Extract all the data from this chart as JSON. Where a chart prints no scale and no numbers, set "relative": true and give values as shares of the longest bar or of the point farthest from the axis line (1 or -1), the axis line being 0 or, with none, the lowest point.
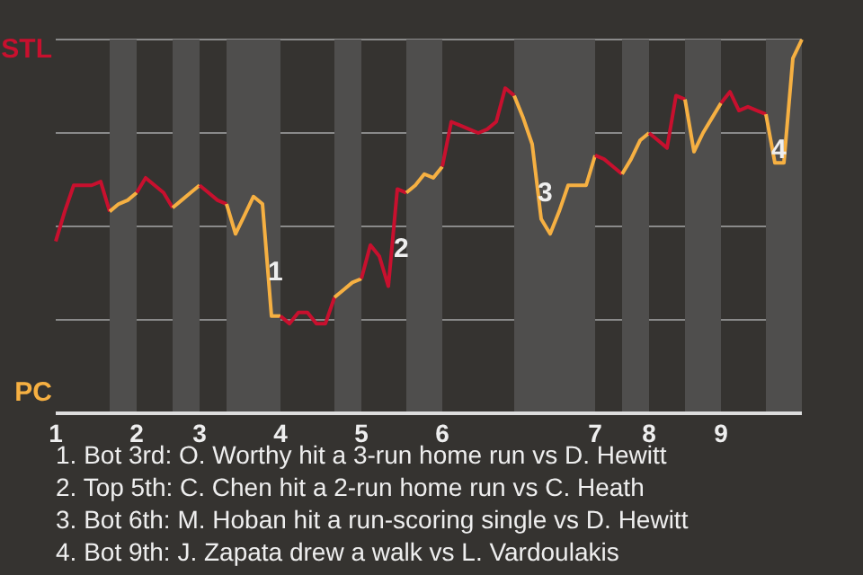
{
  "chart_data": {
    "type": "line",
    "relative": true,
    "categories": [
      "1",
      null,
      null,
      null,
      null,
      null,
      null,
      null,
      null,
      "2",
      null,
      null,
      null,
      null,
      null,
      null,
      "3",
      null,
      null,
      null,
      null,
      null,
      null,
      null,
      null,
      "4",
      null,
      null,
      null,
      null,
      null,
      null,
      null,
      null,
      "5",
      null,
      null,
      null,
      null,
      null,
      null,
      null,
      null,
      "6",
      null,
      null,
      null,
      null,
      null,
      null,
      null,
      null,
      null,
      null,
      null,
      null,
      null,
      null,
      null,
      null,
      "7",
      null,
      null,
      null,
      null,
      null,
      "8",
      null,
      null,
      null,
      null,
      null,
      null,
      null,
      "9",
      null,
      null,
      null,
      null,
      null,
      null,
      null,
      null,
      null
    ],
    "grid": "y",
    "series": [
      {
        "color": "#c8102e",
        "values": [
          0.46,
          0.54,
          0.61,
          0.61,
          0.61,
          0.62,
          0.54,
          null,
          null,
          null,
          null,
          null,
          null,
          null,
          null,
          null,
          null,
          null,
          null,
          null,
          null,
          null,
          null,
          null,
          null,
          null,
          null,
          null,
          null,
          null,
          null,
          null,
          null,
          null,
          null,
          null,
          null,
          null,
          null,
          null,
          null,
          null,
          null,
          null,
          null,
          null,
          null,
          null,
          null,
          null,
          null,
          null,
          null,
          null,
          null,
          null,
          null,
          null,
          null,
          null,
          null,
          null,
          null,
          null,
          null,
          null,
          null,
          null,
          null,
          null,
          null,
          null,
          null,
          null,
          null,
          null,
          null,
          null,
          null,
          null,
          null,
          null,
          null,
          null
        ]
      },
      {
        "color": "#f6b042",
        "values": [
          null,
          null,
          null,
          null,
          null,
          null,
          0.54,
          0.56,
          0.57,
          0.59,
          null,
          null,
          null,
          null,
          null,
          null,
          null,
          null,
          null,
          null,
          null,
          null,
          null,
          null,
          null,
          null,
          null,
          null,
          null,
          null,
          null,
          null,
          null,
          null,
          null,
          null,
          null,
          null,
          null,
          null,
          null,
          null,
          null,
          null,
          null,
          null,
          null,
          null,
          null,
          null,
          null,
          null,
          null,
          null,
          null,
          null,
          null,
          null,
          null,
          null,
          null,
          null,
          null,
          null,
          null,
          null,
          null,
          null,
          null,
          null,
          null,
          null,
          null,
          null,
          null,
          null,
          null,
          null,
          null,
          null,
          null,
          null,
          null,
          null
        ]
      },
      {
        "color": "#c8102e",
        "values": [
          null,
          null,
          null,
          null,
          null,
          null,
          null,
          null,
          null,
          0.59,
          0.63,
          0.61,
          0.59,
          0.55,
          null,
          null,
          null,
          null,
          null,
          null,
          null,
          null,
          null,
          null,
          null,
          null,
          null,
          null,
          null,
          null,
          null,
          null,
          null,
          null,
          null,
          null,
          null,
          null,
          null,
          null,
          null,
          null,
          null,
          null,
          null,
          null,
          null,
          null,
          null,
          null,
          null,
          null,
          null,
          null,
          null,
          null,
          null,
          null,
          null,
          null,
          null,
          null,
          null,
          null,
          null,
          null,
          null,
          null,
          null,
          null,
          null,
          null,
          null,
          null,
          null,
          null,
          null,
          null,
          null,
          null,
          null,
          null,
          null,
          null
        ]
      },
      {
        "color": "#f6b042",
        "values": [
          null,
          null,
          null,
          null,
          null,
          null,
          null,
          null,
          null,
          null,
          null,
          null,
          null,
          0.55,
          0.57,
          0.59,
          0.61,
          null,
          null,
          null,
          null,
          null,
          null,
          null,
          null,
          null,
          null,
          null,
          null,
          null,
          null,
          null,
          null,
          null,
          null,
          null,
          null,
          null,
          null,
          null,
          null,
          null,
          null,
          null,
          null,
          null,
          null,
          null,
          null,
          null,
          null,
          null,
          null,
          null,
          null,
          null,
          null,
          null,
          null,
          null,
          null,
          null,
          null,
          null,
          null,
          null,
          null,
          null,
          null,
          null,
          null,
          null,
          null,
          null,
          null,
          null,
          null,
          null,
          null,
          null,
          null,
          null,
          null,
          null
        ]
      },
      {
        "color": "#c8102e",
        "values": [
          null,
          null,
          null,
          null,
          null,
          null,
          null,
          null,
          null,
          null,
          null,
          null,
          null,
          null,
          null,
          null,
          0.61,
          0.59,
          0.57,
          0.56,
          null,
          null,
          null,
          null,
          null,
          null,
          null,
          null,
          null,
          null,
          null,
          null,
          null,
          null,
          null,
          null,
          null,
          null,
          null,
          null,
          null,
          null,
          null,
          null,
          null,
          null,
          null,
          null,
          null,
          null,
          null,
          null,
          null,
          null,
          null,
          null,
          null,
          null,
          null,
          null,
          null,
          null,
          null,
          null,
          null,
          null,
          null,
          null,
          null,
          null,
          null,
          null,
          null,
          null,
          null,
          null,
          null,
          null,
          null,
          null,
          null,
          null,
          null,
          null
        ]
      },
      {
        "color": "#f6b042",
        "values": [
          null,
          null,
          null,
          null,
          null,
          null,
          null,
          null,
          null,
          null,
          null,
          null,
          null,
          null,
          null,
          null,
          null,
          null,
          null,
          0.56,
          0.48,
          0.53,
          0.58,
          0.56,
          0.26,
          0.26,
          null,
          null,
          null,
          null,
          null,
          null,
          null,
          null,
          null,
          null,
          null,
          null,
          null,
          null,
          null,
          null,
          null,
          null,
          null,
          null,
          null,
          null,
          null,
          null,
          null,
          null,
          null,
          null,
          null,
          null,
          null,
          null,
          null,
          null,
          null,
          null,
          null,
          null,
          null,
          null,
          null,
          null,
          null,
          null,
          null,
          null,
          null,
          null,
          null,
          null,
          null,
          null,
          null,
          null,
          null,
          null,
          null,
          null
        ]
      },
      {
        "color": "#c8102e",
        "values": [
          null,
          null,
          null,
          null,
          null,
          null,
          null,
          null,
          null,
          null,
          null,
          null,
          null,
          null,
          null,
          null,
          null,
          null,
          null,
          null,
          null,
          null,
          null,
          null,
          null,
          0.26,
          0.24,
          0.27,
          0.27,
          0.24,
          0.24,
          0.31,
          null,
          null,
          null,
          null,
          null,
          null,
          null,
          null,
          null,
          null,
          null,
          null,
          null,
          null,
          null,
          null,
          null,
          null,
          null,
          null,
          null,
          null,
          null,
          null,
          null,
          null,
          null,
          null,
          null,
          null,
          null,
          null,
          null,
          null,
          null,
          null,
          null,
          null,
          null,
          null,
          null,
          null,
          null,
          null,
          null,
          null,
          null,
          null,
          null,
          null,
          null,
          null
        ]
      },
      {
        "color": "#f6b042",
        "values": [
          null,
          null,
          null,
          null,
          null,
          null,
          null,
          null,
          null,
          null,
          null,
          null,
          null,
          null,
          null,
          null,
          null,
          null,
          null,
          null,
          null,
          null,
          null,
          null,
          null,
          null,
          null,
          null,
          null,
          null,
          null,
          0.31,
          0.33,
          0.35,
          0.36,
          null,
          null,
          null,
          null,
          null,
          null,
          null,
          null,
          null,
          null,
          null,
          null,
          null,
          null,
          null,
          null,
          null,
          null,
          null,
          null,
          null,
          null,
          null,
          null,
          null,
          null,
          null,
          null,
          null,
          null,
          null,
          null,
          null,
          null,
          null,
          null,
          null,
          null,
          null,
          null,
          null,
          null,
          null,
          null,
          null,
          null,
          null,
          null,
          null
        ]
      },
      {
        "color": "#c8102e",
        "values": [
          null,
          null,
          null,
          null,
          null,
          null,
          null,
          null,
          null,
          null,
          null,
          null,
          null,
          null,
          null,
          null,
          null,
          null,
          null,
          null,
          null,
          null,
          null,
          null,
          null,
          null,
          null,
          null,
          null,
          null,
          null,
          null,
          null,
          null,
          0.36,
          0.45,
          0.42,
          0.34,
          0.6,
          0.59,
          null,
          null,
          null,
          null,
          null,
          null,
          null,
          null,
          null,
          null,
          null,
          null,
          null,
          null,
          null,
          null,
          null,
          null,
          null,
          null,
          null,
          null,
          null,
          null,
          null,
          null,
          null,
          null,
          null,
          null,
          null,
          null,
          null,
          null,
          null,
          null,
          null,
          null,
          null,
          null,
          null,
          null,
          null,
          null
        ]
      },
      {
        "color": "#f6b042",
        "values": [
          null,
          null,
          null,
          null,
          null,
          null,
          null,
          null,
          null,
          null,
          null,
          null,
          null,
          null,
          null,
          null,
          null,
          null,
          null,
          null,
          null,
          null,
          null,
          null,
          null,
          null,
          null,
          null,
          null,
          null,
          null,
          null,
          null,
          null,
          null,
          null,
          null,
          null,
          null,
          0.59,
          0.61,
          0.64,
          0.63,
          0.66,
          null,
          null,
          null,
          null,
          null,
          null,
          null,
          null,
          null,
          null,
          null,
          null,
          null,
          null,
          null,
          null,
          null,
          null,
          null,
          null,
          null,
          null,
          null,
          null,
          null,
          null,
          null,
          null,
          null,
          null,
          null,
          null,
          null,
          null,
          null,
          null,
          null,
          null,
          null,
          null
        ]
      },
      {
        "color": "#c8102e",
        "values": [
          null,
          null,
          null,
          null,
          null,
          null,
          null,
          null,
          null,
          null,
          null,
          null,
          null,
          null,
          null,
          null,
          null,
          null,
          null,
          null,
          null,
          null,
          null,
          null,
          null,
          null,
          null,
          null,
          null,
          null,
          null,
          null,
          null,
          null,
          null,
          null,
          null,
          null,
          null,
          null,
          null,
          null,
          null,
          0.66,
          0.78,
          0.77,
          0.76,
          0.75,
          0.76,
          0.78,
          0.87,
          0.85,
          null,
          null,
          null,
          null,
          null,
          null,
          null,
          null,
          null,
          null,
          null,
          null,
          null,
          null,
          null,
          null,
          null,
          null,
          null,
          null,
          null,
          null,
          null,
          null,
          null,
          null,
          null,
          null,
          null,
          null,
          null,
          null
        ]
      },
      {
        "color": "#f6b042",
        "values": [
          null,
          null,
          null,
          null,
          null,
          null,
          null,
          null,
          null,
          null,
          null,
          null,
          null,
          null,
          null,
          null,
          null,
          null,
          null,
          null,
          null,
          null,
          null,
          null,
          null,
          null,
          null,
          null,
          null,
          null,
          null,
          null,
          null,
          null,
          null,
          null,
          null,
          null,
          null,
          null,
          null,
          null,
          null,
          null,
          null,
          null,
          null,
          null,
          null,
          null,
          null,
          0.85,
          0.79,
          0.72,
          0.52,
          0.48,
          0.54,
          0.61,
          0.61,
          0.61,
          0.69,
          null,
          null,
          null,
          null,
          null,
          null,
          null,
          null,
          null,
          null,
          null,
          null,
          null,
          null,
          null,
          null,
          null,
          null,
          null,
          null,
          null,
          null,
          null
        ]
      },
      {
        "color": "#c8102e",
        "values": [
          null,
          null,
          null,
          null,
          null,
          null,
          null,
          null,
          null,
          null,
          null,
          null,
          null,
          null,
          null,
          null,
          null,
          null,
          null,
          null,
          null,
          null,
          null,
          null,
          null,
          null,
          null,
          null,
          null,
          null,
          null,
          null,
          null,
          null,
          null,
          null,
          null,
          null,
          null,
          null,
          null,
          null,
          null,
          null,
          null,
          null,
          null,
          null,
          null,
          null,
          null,
          null,
          null,
          null,
          null,
          null,
          null,
          null,
          null,
          null,
          0.69,
          0.68,
          0.66,
          0.64,
          null,
          null,
          null,
          null,
          null,
          null,
          null,
          null,
          null,
          null,
          null,
          null,
          null,
          null,
          null,
          null,
          null,
          null,
          null,
          null
        ]
      },
      {
        "color": "#f6b042",
        "values": [
          null,
          null,
          null,
          null,
          null,
          null,
          null,
          null,
          null,
          null,
          null,
          null,
          null,
          null,
          null,
          null,
          null,
          null,
          null,
          null,
          null,
          null,
          null,
          null,
          null,
          null,
          null,
          null,
          null,
          null,
          null,
          null,
          null,
          null,
          null,
          null,
          null,
          null,
          null,
          null,
          null,
          null,
          null,
          null,
          null,
          null,
          null,
          null,
          null,
          null,
          null,
          null,
          null,
          null,
          null,
          null,
          null,
          null,
          null,
          null,
          null,
          null,
          null,
          0.64,
          0.68,
          0.73,
          0.75,
          null,
          null,
          null,
          null,
          null,
          null,
          null,
          null,
          null,
          null,
          null,
          null,
          null,
          null,
          null,
          null,
          null
        ]
      },
      {
        "color": "#c8102e",
        "values": [
          null,
          null,
          null,
          null,
          null,
          null,
          null,
          null,
          null,
          null,
          null,
          null,
          null,
          null,
          null,
          null,
          null,
          null,
          null,
          null,
          null,
          null,
          null,
          null,
          null,
          null,
          null,
          null,
          null,
          null,
          null,
          null,
          null,
          null,
          null,
          null,
          null,
          null,
          null,
          null,
          null,
          null,
          null,
          null,
          null,
          null,
          null,
          null,
          null,
          null,
          null,
          null,
          null,
          null,
          null,
          null,
          null,
          null,
          null,
          null,
          null,
          null,
          null,
          null,
          null,
          null,
          0.75,
          0.73,
          0.71,
          0.85,
          0.84,
          null,
          null,
          null,
          null,
          null,
          null,
          null,
          null,
          null,
          null,
          null,
          null,
          null
        ]
      },
      {
        "color": "#f6b042",
        "values": [
          null,
          null,
          null,
          null,
          null,
          null,
          null,
          null,
          null,
          null,
          null,
          null,
          null,
          null,
          null,
          null,
          null,
          null,
          null,
          null,
          null,
          null,
          null,
          null,
          null,
          null,
          null,
          null,
          null,
          null,
          null,
          null,
          null,
          null,
          null,
          null,
          null,
          null,
          null,
          null,
          null,
          null,
          null,
          null,
          null,
          null,
          null,
          null,
          null,
          null,
          null,
          null,
          null,
          null,
          null,
          null,
          null,
          null,
          null,
          null,
          null,
          null,
          null,
          null,
          null,
          null,
          null,
          null,
          null,
          null,
          0.84,
          0.7,
          0.75,
          0.79,
          0.83,
          null,
          null,
          null,
          null,
          null,
          null,
          null,
          null,
          null
        ]
      },
      {
        "color": "#c8102e",
        "values": [
          null,
          null,
          null,
          null,
          null,
          null,
          null,
          null,
          null,
          null,
          null,
          null,
          null,
          null,
          null,
          null,
          null,
          null,
          null,
          null,
          null,
          null,
          null,
          null,
          null,
          null,
          null,
          null,
          null,
          null,
          null,
          null,
          null,
          null,
          null,
          null,
          null,
          null,
          null,
          null,
          null,
          null,
          null,
          null,
          null,
          null,
          null,
          null,
          null,
          null,
          null,
          null,
          null,
          null,
          null,
          null,
          null,
          null,
          null,
          null,
          null,
          null,
          null,
          null,
          null,
          null,
          null,
          null,
          null,
          null,
          null,
          null,
          null,
          null,
          0.83,
          0.86,
          0.81,
          0.82,
          0.81,
          0.8,
          null,
          null,
          null,
          null
        ]
      },
      {
        "color": "#f6b042",
        "values": [
          null,
          null,
          null,
          null,
          null,
          null,
          null,
          null,
          null,
          null,
          null,
          null,
          null,
          null,
          null,
          null,
          null,
          null,
          null,
          null,
          null,
          null,
          null,
          null,
          null,
          null,
          null,
          null,
          null,
          null,
          null,
          null,
          null,
          null,
          null,
          null,
          null,
          null,
          null,
          null,
          null,
          null,
          null,
          null,
          null,
          null,
          null,
          null,
          null,
          null,
          null,
          null,
          null,
          null,
          null,
          null,
          null,
          null,
          null,
          null,
          null,
          null,
          null,
          null,
          null,
          null,
          null,
          null,
          null,
          null,
          null,
          null,
          null,
          null,
          null,
          null,
          null,
          null,
          null,
          0.8,
          0.67,
          0.67,
          0.95,
          1
        ]
      }
    ],
    "annotations": [
      "STL",
      "PC",
      "1",
      "2",
      "3",
      "4",
      "1. Bot 3rd: O. Worthy hit a 3-run home run vs D. Hewitt",
      "2. Top 5th: C. Chen hit a 2-run home run vs C. Heath",
      "3. Bot 6th: M. Hoban hit a run-scoring single vs D. Hewitt",
      "4. Bot 9th: J. Zapata drew a walk vs L. Vardoulakis"
    ]
  }
}
